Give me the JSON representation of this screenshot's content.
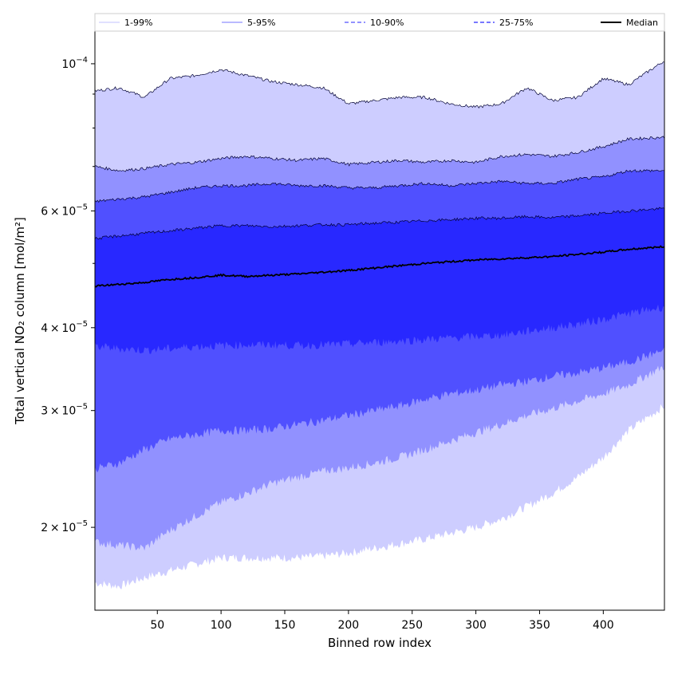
{
  "chart_data": {
    "type": "area",
    "xlabel": "Binned row index",
    "ylabel": "Total vertical NO₂ column [mol/m²]",
    "xlim": [
      1,
      448
    ],
    "ylim": [
      1.5e-05,
      0.000112
    ],
    "yscale": "log",
    "grid": false,
    "legend_placement": "top",
    "x_ticks": [
      50,
      100,
      150,
      200,
      250,
      300,
      350,
      400
    ],
    "x_tick_labels": [
      "50",
      "100",
      "150",
      "200",
      "250",
      "300",
      "350",
      "400"
    ],
    "y_ticks": [
      {
        "value": 2e-05,
        "mantissa": "2",
        "exp": "−5"
      },
      {
        "value": 3e-05,
        "mantissa": "3",
        "exp": "−5"
      },
      {
        "value": 4e-05,
        "mantissa": "4",
        "exp": "−5"
      },
      {
        "value": 6e-05,
        "mantissa": "6",
        "exp": "−5"
      },
      {
        "value": 0.0001,
        "mantissa": "",
        "exp": "−4"
      }
    ],
    "y_minor_ticks": [
      5e-05,
      7e-05,
      8e-05,
      9e-05
    ],
    "tick_times": "×",
    "tick_base": "10",
    "x": [
      1,
      20,
      40,
      60,
      80,
      100,
      120,
      140,
      160,
      180,
      200,
      220,
      240,
      260,
      280,
      300,
      320,
      340,
      360,
      380,
      400,
      420,
      448
    ],
    "bands": [
      {
        "name": "1-99%",
        "color": "#cdcdff",
        "lower": [
          1.65e-05,
          1.63e-05,
          1.68e-05,
          1.72e-05,
          1.76e-05,
          1.8e-05,
          1.8e-05,
          1.8e-05,
          1.8e-05,
          1.81e-05,
          1.83e-05,
          1.86e-05,
          1.89e-05,
          1.92e-05,
          1.96e-05,
          2e-05,
          2.06e-05,
          2.15e-05,
          2.25e-05,
          2.38e-05,
          2.55e-05,
          2.8e-05,
          3.05e-05
        ],
        "upper": [
          9.1e-05,
          9.2e-05,
          8.9e-05,
          9.5e-05,
          9.6e-05,
          9.8e-05,
          9.6e-05,
          9.4e-05,
          9.3e-05,
          9.2e-05,
          8.7e-05,
          8.8e-05,
          8.9e-05,
          8.9e-05,
          8.7e-05,
          8.6e-05,
          8.7e-05,
          9.2e-05,
          8.8e-05,
          8.9e-05,
          9.5e-05,
          9.3e-05,
          0.000101
        ]
      },
      {
        "name": "5-95%",
        "color": "#9191ff",
        "lower": [
          1.9e-05,
          1.88e-05,
          1.86e-05,
          1.98e-05,
          2.08e-05,
          2.18e-05,
          2.25e-05,
          2.33e-05,
          2.38e-05,
          2.43e-05,
          2.46e-05,
          2.5e-05,
          2.55e-05,
          2.62e-05,
          2.7e-05,
          2.78e-05,
          2.86e-05,
          2.95e-05,
          3.02e-05,
          3.1e-05,
          3.18e-05,
          3.28e-05,
          3.5e-05
        ],
        "upper": [
          7e-05,
          6.9e-05,
          6.95e-05,
          7.05e-05,
          7.1e-05,
          7.2e-05,
          7.25e-05,
          7.2e-05,
          7.15e-05,
          7.2e-05,
          7.05e-05,
          7.1e-05,
          7.15e-05,
          7.1e-05,
          7.15e-05,
          7.1e-05,
          7.25e-05,
          7.3e-05,
          7.25e-05,
          7.35e-05,
          7.5e-05,
          7.7e-05,
          7.75e-05
        ]
      },
      {
        "name": "10-90%",
        "color": "#5050ff",
        "lower": [
          2.45e-05,
          2.5e-05,
          2.62e-05,
          2.72e-05,
          2.76e-05,
          2.8e-05,
          2.8e-05,
          2.82e-05,
          2.86e-05,
          2.9e-05,
          2.95e-05,
          3e-05,
          3.05e-05,
          3.12e-05,
          3.18e-05,
          3.22e-05,
          3.28e-05,
          3.32e-05,
          3.38e-05,
          3.42e-05,
          3.48e-05,
          3.55e-05,
          3.7e-05
        ],
        "upper": [
          6.2e-05,
          6.25e-05,
          6.3e-05,
          6.4e-05,
          6.5e-05,
          6.55e-05,
          6.55e-05,
          6.6e-05,
          6.55e-05,
          6.55e-05,
          6.5e-05,
          6.5e-05,
          6.55e-05,
          6.6e-05,
          6.55e-05,
          6.6e-05,
          6.65e-05,
          6.6e-05,
          6.6e-05,
          6.7e-05,
          6.75e-05,
          6.9e-05,
          6.9e-05
        ]
      },
      {
        "name": "25-75%",
        "color": "#2828ff",
        "lower": [
          3.75e-05,
          3.72e-05,
          3.7e-05,
          3.72e-05,
          3.75e-05,
          3.76e-05,
          3.77e-05,
          3.77e-05,
          3.76e-05,
          3.77e-05,
          3.78e-05,
          3.8e-05,
          3.82e-05,
          3.84e-05,
          3.86e-05,
          3.88e-05,
          3.9e-05,
          3.95e-05,
          4e-05,
          4.05e-05,
          4.12e-05,
          4.2e-05,
          4.3e-05
        ],
        "upper": [
          5.45e-05,
          5.5e-05,
          5.55e-05,
          5.6e-05,
          5.65e-05,
          5.7e-05,
          5.7e-05,
          5.68e-05,
          5.7e-05,
          5.72e-05,
          5.72e-05,
          5.75e-05,
          5.77e-05,
          5.8e-05,
          5.82e-05,
          5.85e-05,
          5.85e-05,
          5.88e-05,
          5.86e-05,
          5.9e-05,
          5.95e-05,
          6e-05,
          6.05e-05
        ]
      }
    ],
    "series": [
      {
        "name": "Median",
        "color": "#000000",
        "values": [
          4.62e-05,
          4.65e-05,
          4.68e-05,
          4.73e-05,
          4.76e-05,
          4.8e-05,
          4.78e-05,
          4.8e-05,
          4.82e-05,
          4.85e-05,
          4.88e-05,
          4.92e-05,
          4.96e-05,
          5e-05,
          5.03e-05,
          5.06e-05,
          5.08e-05,
          5.1e-05,
          5.12e-05,
          5.16e-05,
          5.2e-05,
          5.25e-05,
          5.3e-05
        ]
      }
    ],
    "legend": [
      {
        "label": "1-99%",
        "color": "#cdcdff",
        "dash": ""
      },
      {
        "label": "5-95%",
        "color": "#9191ff",
        "dash": ""
      },
      {
        "label": "10-90%",
        "color": "#5050ff",
        "dash": "5,3"
      },
      {
        "label": "25-75%",
        "color": "#2828ff",
        "dash": "5,3"
      },
      {
        "label": "Median",
        "color": "#000000",
        "dash": ""
      }
    ]
  }
}
